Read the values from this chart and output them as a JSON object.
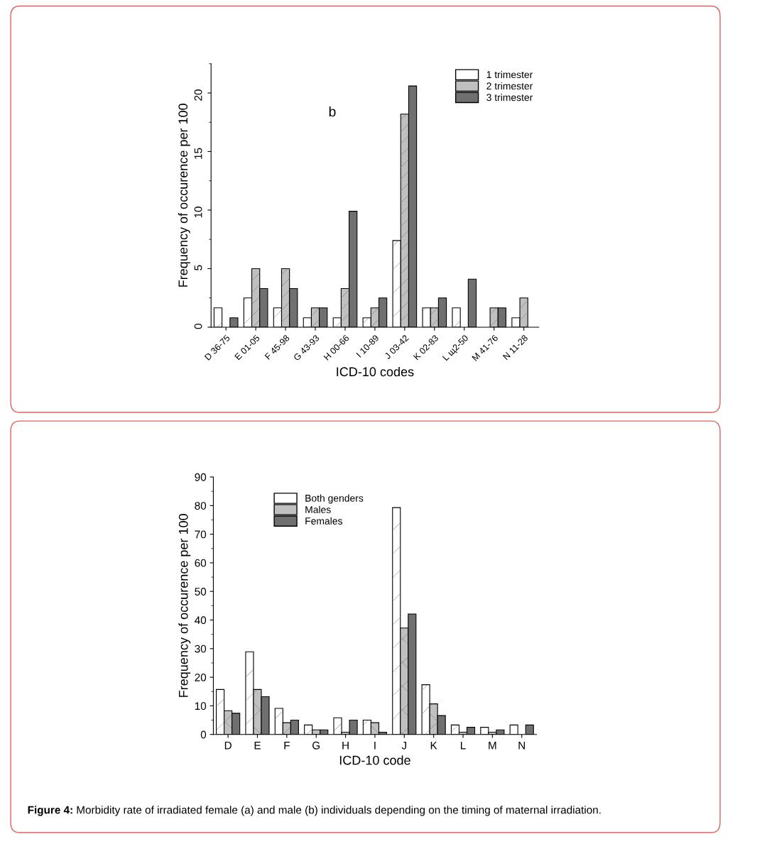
{
  "chart_data": [
    {
      "type": "bar",
      "categories": [
        "D 36-75",
        "E 01-05",
        "F 45-98",
        "G 43-93",
        "H 00-66",
        "I 10-89",
        "J 03-42",
        "K 02-83",
        "L щ2-50",
        "M 41-76",
        "N 11-28"
      ],
      "series": [
        {
          "name": "1 trimester",
          "color": "#ffffff",
          "values": [
            1.65,
            2.5,
            1.65,
            0.8,
            0.8,
            0.8,
            7.4,
            1.65,
            1.65,
            null,
            0.8
          ]
        },
        {
          "name": "2 trimester",
          "color": "#c0c0c0",
          "values": [
            null,
            5,
            5,
            1.65,
            3.3,
            1.65,
            18.2,
            1.65,
            null,
            1.65,
            2.5
          ]
        },
        {
          "name": "3 trimester",
          "color": "#707070",
          "values": [
            0.8,
            3.3,
            3.3,
            1.65,
            9.9,
            2.5,
            20.6,
            2.5,
            4.1,
            1.65,
            null
          ]
        }
      ],
      "xlabel": "ICD-10 codes",
      "ylabel": "Frequency of occurence per 100",
      "ylim": [
        0,
        22.5
      ],
      "yticks": [
        0,
        5,
        10,
        15,
        20
      ],
      "annotations": [
        "b"
      ],
      "legend": "top right",
      "grid": false
    },
    {
      "type": "bar",
      "categories": [
        "D",
        "E",
        "F",
        "G",
        "H",
        "I",
        "J",
        "K",
        "L",
        "M",
        "N"
      ],
      "series": [
        {
          "name": "Both genders",
          "color": "#ffffff",
          "values": [
            15.7,
            28.9,
            9.1,
            3.3,
            5.8,
            5.0,
            79.3,
            17.4,
            3.3,
            2.5,
            3.3
          ]
        },
        {
          "name": "Males",
          "color": "#c0c0c0",
          "values": [
            8.3,
            15.7,
            4.1,
            1.6,
            0.8,
            4.1,
            37.2,
            10.7,
            0.8,
            0.8,
            null
          ]
        },
        {
          "name": "Females",
          "color": "#707070",
          "values": [
            7.4,
            13.2,
            5.0,
            1.6,
            5.0,
            0.8,
            42.1,
            6.6,
            2.5,
            1.6,
            3.3
          ]
        }
      ],
      "xlabel": "ICD-10 code",
      "ylabel": "Frequency of occurence per 100",
      "ylim": [
        0,
        90
      ],
      "yticks": [
        0,
        10,
        20,
        30,
        40,
        50,
        60,
        70,
        80,
        90
      ],
      "annotations": [
        "Figure 4:",
        "Morbidity rate of irradiated female (a) and male (b) individuals depending on the timing of maternal irradiation."
      ],
      "legend": "top left",
      "grid": false
    }
  ]
}
